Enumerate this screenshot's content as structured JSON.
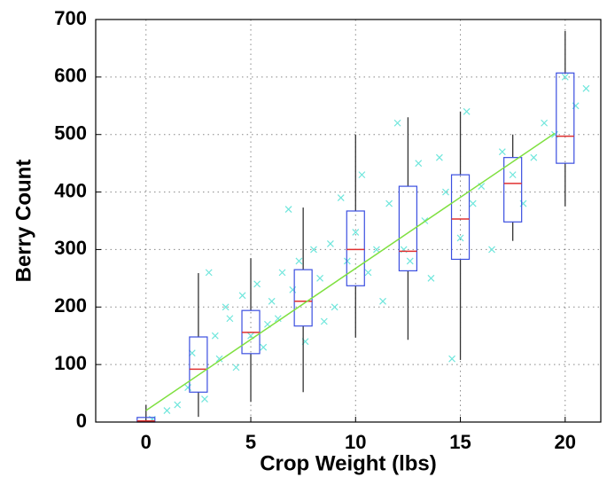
{
  "chart_data": {
    "type": "box",
    "xlabel": "Crop Weight (lbs)",
    "ylabel": "Berry Count",
    "xlim": [
      -2.4,
      21.7
    ],
    "ylim": [
      0,
      700
    ],
    "xticks": [
      0,
      5,
      10,
      15,
      20
    ],
    "yticks": [
      0,
      100,
      200,
      300,
      400,
      500,
      600,
      700
    ],
    "grid": true,
    "positions": [
      0,
      2.5,
      5,
      7.5,
      10,
      12.5,
      15,
      17.5,
      20
    ],
    "box_color": "#3b4fe0",
    "median_color": "#e03030",
    "whisker_color": "#333333",
    "boxes": [
      {
        "low": 0,
        "q1": 0,
        "median": 2,
        "q3": 8,
        "high": 30
      },
      {
        "low": 9,
        "q1": 52,
        "median": 92,
        "q3": 148,
        "high": 259
      },
      {
        "low": 35,
        "q1": 119,
        "median": 156,
        "q3": 194,
        "high": 285
      },
      {
        "low": 52,
        "q1": 167,
        "median": 210,
        "q3": 265,
        "high": 373
      },
      {
        "low": 147,
        "q1": 237,
        "median": 300,
        "q3": 367,
        "high": 500
      },
      {
        "low": 143,
        "q1": 263,
        "median": 297,
        "q3": 410,
        "high": 530
      },
      {
        "low": 108,
        "q1": 283,
        "median": 353,
        "q3": 430,
        "high": 540
      },
      {
        "low": 315,
        "q1": 348,
        "median": 415,
        "q3": 460,
        "high": 500
      },
      {
        "low": 375,
        "q1": 450,
        "median": 497,
        "q3": 607,
        "high": 680
      }
    ],
    "scatter": {
      "color": "#6fe6dc",
      "x": [
        0.3,
        1.0,
        1.5,
        2.0,
        2.2,
        2.8,
        3.0,
        3.3,
        3.5,
        3.8,
        4.0,
        4.3,
        4.6,
        5.0,
        5.3,
        5.6,
        5.8,
        6.0,
        6.3,
        6.5,
        6.8,
        7.0,
        7.3,
        7.6,
        8.0,
        8.3,
        8.5,
        8.8,
        9.0,
        9.3,
        9.6,
        10.0,
        10.3,
        10.6,
        11.0,
        11.3,
        11.6,
        12.0,
        12.3,
        12.6,
        13.0,
        13.3,
        13.6,
        14.0,
        14.3,
        14.6,
        15.0,
        15.3,
        15.6,
        16.0,
        16.5,
        17.0,
        17.5,
        18.0,
        18.5,
        19.0,
        19.5,
        20.0,
        20.5,
        21.0
      ],
      "y": [
        5,
        20,
        30,
        60,
        120,
        40,
        260,
        150,
        110,
        200,
        180,
        95,
        220,
        150,
        240,
        130,
        170,
        210,
        180,
        260,
        370,
        230,
        280,
        140,
        300,
        250,
        175,
        310,
        200,
        390,
        280,
        330,
        430,
        260,
        300,
        210,
        380,
        520,
        300,
        280,
        450,
        350,
        250,
        460,
        400,
        110,
        320,
        540,
        380,
        410,
        300,
        470,
        430,
        380,
        460,
        520,
        500,
        600,
        550,
        580
      ]
    },
    "fit": {
      "color": "#7fe040",
      "x": [
        0,
        19.5
      ],
      "values": [
        20,
        502
      ]
    }
  }
}
